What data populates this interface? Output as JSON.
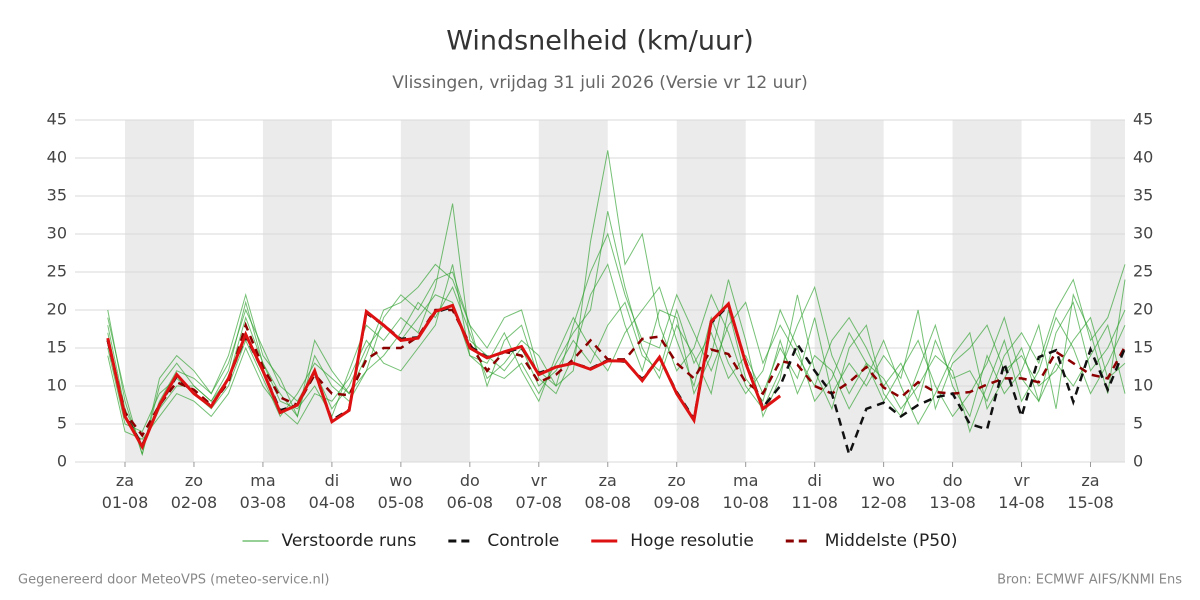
{
  "chart_data": {
    "type": "line",
    "title": "Windsnelheid (km/uur)",
    "subtitle": "Vlissingen, vrijdag 31 juli 2026 (Versie vr 12 uur)",
    "footer_left": "Gegenereerd door MeteoVPS (meteo-service.nl)",
    "footer_right": "Bron: ECMWF AIFS/KNMI Ens",
    "x": [
      18,
      24,
      30,
      36,
      42,
      48,
      54,
      60,
      66,
      72,
      78,
      84,
      90,
      96,
      102,
      108,
      114,
      120,
      126,
      132,
      138,
      144,
      150,
      156,
      162,
      168,
      174,
      180,
      186,
      192,
      198,
      204,
      210,
      216,
      222,
      228,
      234,
      240,
      246,
      252,
      258,
      264,
      270,
      276,
      282,
      288,
      294,
      300,
      306,
      312,
      318,
      324,
      330,
      336,
      342,
      348,
      354,
      360,
      366,
      372
    ],
    "xlim": [
      6.6,
      372
    ],
    "xticks": [
      {
        "value": 24,
        "label": "za\n01-08"
      },
      {
        "value": 48,
        "label": "zo\n02-08"
      },
      {
        "value": 72,
        "label": "ma\n03-08"
      },
      {
        "value": 96,
        "label": "di\n04-08"
      },
      {
        "value": 120,
        "label": "wo\n05-08"
      },
      {
        "value": 144,
        "label": "do\n06-08"
      },
      {
        "value": 168,
        "label": "vr\n07-08"
      },
      {
        "value": 192,
        "label": "za\n08-08"
      },
      {
        "value": 216,
        "label": "zo\n09-08"
      },
      {
        "value": 240,
        "label": "ma\n10-08"
      },
      {
        "value": 264,
        "label": "di\n11-08"
      },
      {
        "value": 288,
        "label": "wo\n12-08"
      },
      {
        "value": 312,
        "label": "do\n13-08"
      },
      {
        "value": 336,
        "label": "vr\n14-08"
      },
      {
        "value": 360,
        "label": "za\n15-08"
      }
    ],
    "ylim": [
      0,
      45
    ],
    "yticks": [
      0,
      5,
      10,
      15,
      20,
      25,
      30,
      35,
      40,
      45
    ],
    "grid": true,
    "shade_alternate_days": true,
    "shade_color": "#ebebeb",
    "legend": "bottom",
    "ensemble": {
      "name": "Verstoorde runs",
      "color": "#2ca02c",
      "members": [
        [
          20,
          8,
          1,
          10,
          13,
          10,
          8,
          12,
          21,
          13,
          9,
          6,
          14,
          10,
          8,
          12,
          19,
          22,
          20,
          24,
          25,
          18,
          10,
          16,
          18,
          11,
          9,
          14,
          22,
          26,
          18,
          12,
          20,
          19,
          9,
          14,
          24,
          16,
          6,
          11,
          22,
          12,
          7,
          15,
          18,
          9,
          6,
          12,
          18,
          10,
          6,
          14,
          9,
          12,
          18,
          7,
          22,
          17,
          9,
          24
        ],
        [
          14,
          4,
          3,
          6,
          9,
          8,
          6,
          9,
          15,
          10,
          7,
          5,
          9,
          8,
          11,
          16,
          13,
          12,
          15,
          18,
          26,
          14,
          12,
          11,
          13,
          9,
          13,
          17,
          20,
          33,
          23,
          15,
          11,
          18,
          14,
          9,
          20,
          11,
          8,
          16,
          9,
          14,
          12,
          7,
          11,
          16,
          10,
          5,
          9,
          14,
          17,
          7,
          11,
          15,
          8,
          13,
          10,
          14,
          18,
          9
        ],
        [
          18,
          7,
          2,
          8,
          12,
          11,
          9,
          13,
          20,
          15,
          10,
          8,
          12,
          7,
          10,
          15,
          18,
          16,
          19,
          22,
          21,
          14,
          13,
          17,
          12,
          8,
          14,
          19,
          15,
          12,
          17,
          20,
          23,
          16,
          10,
          19,
          13,
          9,
          12,
          20,
          15,
          8,
          11,
          17,
          13,
          8,
          12,
          16,
          10,
          6,
          9,
          13,
          19,
          11,
          8,
          17,
          21,
          12,
          15,
          20
        ],
        [
          15,
          5,
          4,
          9,
          11,
          9,
          7,
          10,
          16,
          11,
          6,
          9,
          13,
          11,
          9,
          12,
          14,
          17,
          21,
          19,
          23,
          17,
          11,
          13,
          16,
          14,
          10,
          12,
          29,
          41,
          26,
          30,
          18,
          12,
          15,
          22,
          17,
          10,
          7,
          12,
          18,
          23,
          14,
          9,
          13,
          11,
          7,
          10,
          14,
          12,
          4,
          10,
          16,
          8,
          12,
          19,
          15,
          9,
          13,
          18
        ],
        [
          17,
          6,
          2,
          7,
          10,
          10,
          8,
          11,
          19,
          13,
          8,
          7,
          10,
          6,
          12,
          18,
          16,
          19,
          17,
          23,
          34,
          16,
          14,
          12,
          15,
          10,
          12,
          16,
          13,
          18,
          21,
          14,
          12,
          20,
          13,
          17,
          11,
          14,
          9,
          15,
          11,
          19,
          9,
          13,
          10,
          14,
          11,
          20,
          7,
          13,
          15,
          18,
          12,
          14,
          10,
          12,
          16,
          19,
          11,
          13
        ],
        [
          19,
          9,
          1,
          11,
          14,
          12,
          9,
          14,
          22,
          14,
          11,
          6,
          16,
          12,
          9,
          14,
          20,
          21,
          23,
          26,
          24,
          18,
          15,
          19,
          20,
          12,
          10,
          18,
          25,
          30,
          22,
          16,
          15,
          22,
          17,
          12,
          18,
          21,
          13,
          18,
          14,
          10,
          16,
          19,
          15,
          10,
          13,
          8,
          16,
          11,
          12,
          8,
          14,
          17,
          13,
          20,
          24,
          16,
          19,
          26
        ]
      ]
    },
    "series": [
      {
        "name": "Controle",
        "color": "#111111",
        "dash": true,
        "values": [
          16,
          6.2,
          2.2,
          7.4,
          11.3,
          9,
          7.4,
          11,
          16.5,
          12,
          6.8,
          7.5,
          11.8,
          5.5,
          6.9,
          19.6,
          18,
          16.2,
          16.4,
          19.7,
          20.4,
          15.2,
          13.8,
          14.4,
          15,
          11.7,
          12.5,
          13,
          12.3,
          13.4,
          13.2,
          10.9,
          13.7,
          9.2,
          5.7,
          18.3,
          20.6,
          13.2,
          7.2,
          10,
          15.5,
          12,
          9,
          1,
          7,
          7.8,
          6,
          7.5,
          8.5,
          9,
          5,
          4.3,
          13,
          6,
          13.8,
          14.7,
          7.9,
          14.8,
          9.5,
          15
        ]
      },
      {
        "name": "Hoge resolutie",
        "color": "#dd1111",
        "dash": false,
        "values": [
          16.3,
          6,
          2,
          7.5,
          11.5,
          9,
          7.3,
          11,
          16.8,
          12,
          6.5,
          7.5,
          12,
          5.3,
          6.8,
          19.8,
          18,
          16,
          16.3,
          19.8,
          20.6,
          15,
          13.7,
          14.5,
          15.2,
          11.5,
          12.5,
          13,
          12.2,
          13.3,
          13.3,
          10.7,
          13.8,
          9,
          5.5,
          18.5,
          20.8,
          13,
          7,
          8.7,
          null,
          null,
          null,
          null,
          null,
          null,
          null,
          null,
          null,
          null,
          null,
          null,
          null,
          null,
          null,
          null,
          null,
          null,
          null,
          null
        ]
      },
      {
        "name": "Middelste (P50)",
        "color": "#8b0000",
        "dash": true,
        "values": [
          16,
          6.5,
          3.5,
          7.5,
          10.5,
          9.5,
          7.5,
          10.5,
          18,
          12.5,
          8.5,
          7.5,
          11.5,
          9,
          8.8,
          13.5,
          15,
          15,
          16.5,
          20,
          20,
          15.5,
          12,
          14.5,
          14,
          10.5,
          11.5,
          13.5,
          16,
          13.5,
          13.5,
          16.2,
          16.5,
          13,
          11,
          14.8,
          14.2,
          10.5,
          9,
          13.3,
          12.8,
          10,
          9,
          10.5,
          12.5,
          9.8,
          8.5,
          10.5,
          9.2,
          9,
          9.2,
          10.2,
          11,
          11,
          10.5,
          14.5,
          13,
          11.5,
          11,
          15.2
        ]
      }
    ]
  }
}
